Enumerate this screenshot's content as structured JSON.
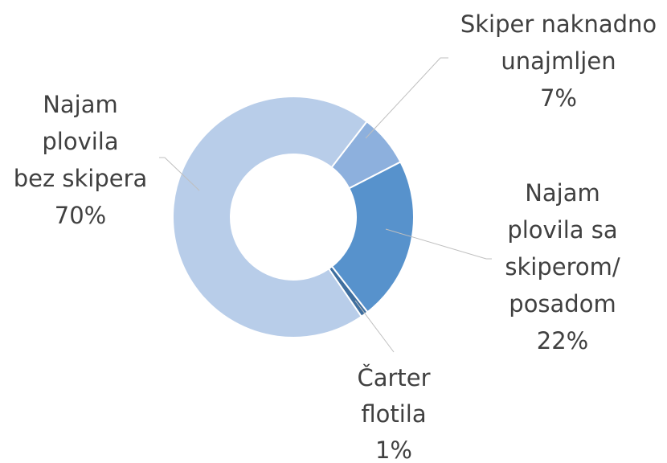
{
  "chart_data": {
    "type": "donut",
    "categories": [
      "Skiper naknadno\nunajmljen",
      "Najam\nplovila sa\nskiperom/\nposadom",
      "Čarter\nflotila",
      "Najam\nplovila\nbez skipera"
    ],
    "values": [
      7,
      22,
      1,
      70
    ],
    "value_labels": [
      "7%",
      "22%",
      "1%",
      "70%"
    ],
    "colors": [
      "#8db0dd",
      "#5792cc",
      "#3f6f9f",
      "#b8cde9"
    ]
  }
}
